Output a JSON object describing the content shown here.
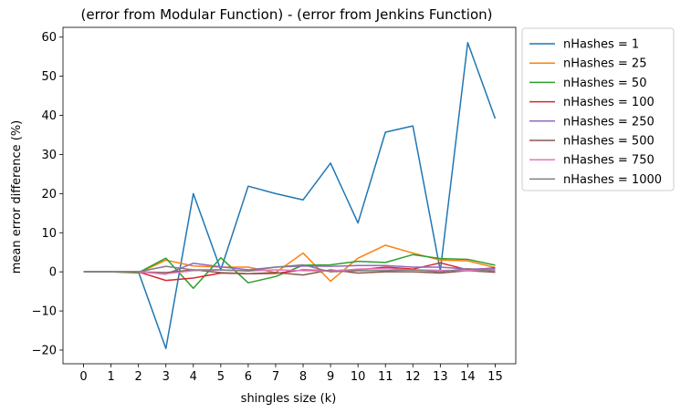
{
  "chart_data": {
    "type": "line",
    "title": "(error from Modular Function) - (error from Jenkins Function)",
    "xlabel": "shingles size (k)",
    "ylabel": "mean error difference (%)",
    "x": [
      0,
      1,
      2,
      3,
      4,
      5,
      6,
      7,
      8,
      9,
      10,
      11,
      12,
      13,
      14,
      15
    ],
    "x_ticks": [
      "0",
      "1",
      "2",
      "3",
      "4",
      "5",
      "6",
      "7",
      "8",
      "9",
      "10",
      "11",
      "12",
      "13",
      "14",
      "15"
    ],
    "y_ticks": [
      -20,
      -10,
      0,
      10,
      20,
      30,
      40,
      50,
      60
    ],
    "y_tick_labels": [
      "−20",
      "−10",
      "0",
      "10",
      "20",
      "30",
      "40",
      "50",
      "60"
    ],
    "xlim": [
      -0.75,
      15.75
    ],
    "ylim": [
      -23.5,
      62.5
    ],
    "legend_position": "outside-right",
    "grid": false,
    "series": [
      {
        "name": "nHashes = 1",
        "color": "#1f77b4",
        "values": [
          0,
          0,
          0,
          -19.6,
          20,
          0.5,
          21.9,
          20,
          18.4,
          27.8,
          12.5,
          35.7,
          37.3,
          0.3,
          58.6,
          39.2
        ]
      },
      {
        "name": "nHashes = 25",
        "color": "#ff7f0e",
        "values": [
          0,
          0,
          -0.3,
          3,
          1.5,
          1.2,
          1.2,
          -0.2,
          4.8,
          -2.4,
          3.5,
          6.8,
          4.8,
          3,
          2.8,
          1.1
        ]
      },
      {
        "name": "nHashes = 50",
        "color": "#2ca02c",
        "values": [
          0,
          0,
          -0.2,
          3.5,
          -4.2,
          3.6,
          -2.8,
          -1.2,
          1.7,
          1.8,
          2.7,
          2.4,
          4.4,
          3.4,
          3.2,
          1.7
        ]
      },
      {
        "name": "nHashes = 100",
        "color": "#d62728",
        "values": [
          0,
          0,
          0,
          -2.2,
          -1.6,
          -0.3,
          -0.5,
          -0.4,
          0.5,
          0.3,
          0.5,
          1.2,
          0.7,
          2.3,
          0.5,
          1
        ]
      },
      {
        "name": "nHashes = 250",
        "color": "#9467bd",
        "values": [
          0,
          0,
          0,
          -0.6,
          2.2,
          1.3,
          0.5,
          1.2,
          1.5,
          1.4,
          1.6,
          1.6,
          1.2,
          1.2,
          0.7,
          0.8
        ]
      },
      {
        "name": "nHashes = 500",
        "color": "#8c564b",
        "values": [
          0,
          0,
          0,
          -0.2,
          0.5,
          -0.2,
          -0.5,
          -0.2,
          -0.8,
          0.5,
          -0.3,
          0,
          0,
          -0.3,
          0.3,
          -0.1
        ]
      },
      {
        "name": "nHashes = 750",
        "color": "#e377c2",
        "values": [
          0,
          0,
          0,
          -0.5,
          0.3,
          0.5,
          0.2,
          0.5,
          0.3,
          0.2,
          0.7,
          0.8,
          0.5,
          0.4,
          0.3,
          0.5
        ]
      },
      {
        "name": "nHashes = 1000",
        "color": "#7f7f7f",
        "values": [
          0,
          0,
          0,
          1.4,
          0.5,
          0.5,
          0.2,
          1.2,
          1.8,
          0,
          0.3,
          0.3,
          0.5,
          0,
          0.8,
          0.2
        ]
      }
    ]
  }
}
